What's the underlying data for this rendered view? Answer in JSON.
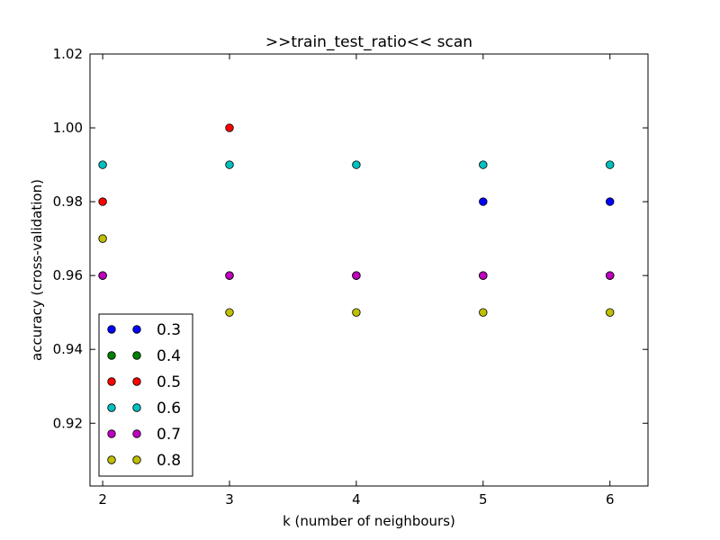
{
  "chart_data": {
    "type": "scatter",
    "title": ">>train_test_ratio<< scan",
    "xlabel": "k (number of neighbours)",
    "ylabel": "accuracy (cross-validation)",
    "xlim": [
      1.9,
      6.3
    ],
    "ylim": [
      0.903,
      1.02
    ],
    "xticks": [
      2,
      3,
      4,
      5,
      6
    ],
    "xtick_labels": [
      "2",
      "3",
      "4",
      "5",
      "6"
    ],
    "yticks": [
      0.92,
      0.94,
      0.96,
      0.98,
      1.0,
      1.02
    ],
    "ytick_labels": [
      "0.92",
      "0.94",
      "0.96",
      "0.98",
      "1.00",
      "1.02"
    ],
    "grid": false,
    "legend_position": "bottom-left",
    "x": [
      2,
      3,
      4,
      5,
      6
    ],
    "series": [
      {
        "name": "0.3",
        "color": "#0000ff",
        "values": [
          0.96,
          0.96,
          0.96,
          0.98,
          0.98
        ]
      },
      {
        "name": "0.4",
        "color": "#007f00",
        "values": [
          0.96,
          0.96,
          0.96,
          0.96,
          0.96
        ]
      },
      {
        "name": "0.5",
        "color": "#ff0000",
        "values": [
          0.98,
          1.0,
          0.96,
          0.96,
          0.96
        ]
      },
      {
        "name": "0.6",
        "color": "#00bfbf",
        "values": [
          0.99,
          0.99,
          0.99,
          0.99,
          0.99
        ]
      },
      {
        "name": "0.7",
        "color": "#bf00bf",
        "values": [
          0.96,
          0.96,
          0.96,
          0.96,
          0.96
        ]
      },
      {
        "name": "0.8",
        "color": "#bfbf00",
        "values": [
          0.97,
          0.95,
          0.95,
          0.95,
          0.95
        ]
      }
    ]
  }
}
